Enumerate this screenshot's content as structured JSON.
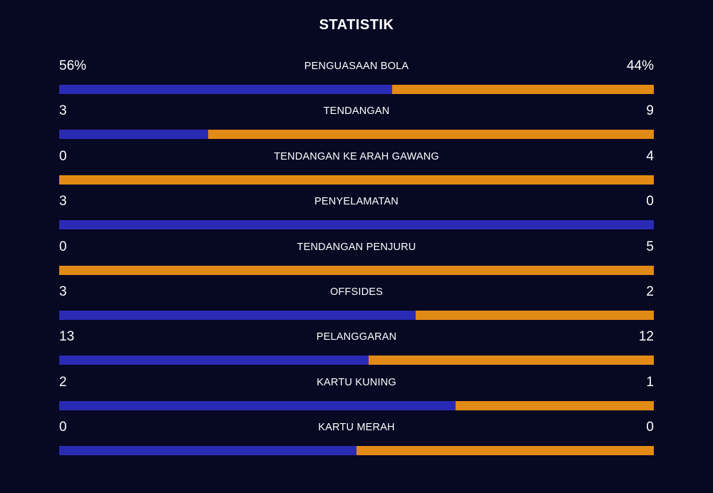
{
  "title": "STATISTIK",
  "colors": {
    "background": "#070822",
    "home": "#2a2bb4",
    "away": "#e28a16"
  },
  "stats": [
    {
      "label": "PENGUASAAN BOLA",
      "home": "56%",
      "away": "44%",
      "home_share": 0.56
    },
    {
      "label": "TENDANGAN",
      "home": "3",
      "away": "9",
      "home_share": 0.25
    },
    {
      "label": "TENDANGAN KE ARAH GAWANG",
      "home": "0",
      "away": "4",
      "home_share": 0.0
    },
    {
      "label": "PENYELAMATAN",
      "home": "3",
      "away": "0",
      "home_share": 1.0
    },
    {
      "label": "TENDANGAN PENJURU",
      "home": "0",
      "away": "5",
      "home_share": 0.0
    },
    {
      "label": "OFFSIDES",
      "home": "3",
      "away": "2",
      "home_share": 0.6
    },
    {
      "label": "PELANGGARAN",
      "home": "13",
      "away": "12",
      "home_share": 0.52
    },
    {
      "label": "KARTU KUNING",
      "home": "2",
      "away": "1",
      "home_share": 0.667
    },
    {
      "label": "KARTU MERAH",
      "home": "0",
      "away": "0",
      "home_share": 0.5
    }
  ]
}
